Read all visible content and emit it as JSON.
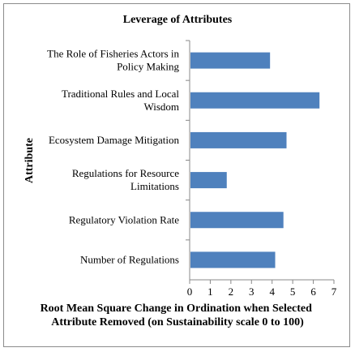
{
  "chart_data": {
    "type": "bar",
    "orientation": "horizontal",
    "title": "Leverage of Attributes",
    "ylabel": "Attribute",
    "xlabel_lines": [
      "Root Mean Square Change in Ordination when Selected",
      "Attribute Removed (on Sustainability scale 0 to 100)"
    ],
    "categories": [
      [
        "The Role of Fisheries Actors in",
        "Policy Making"
      ],
      [
        "Traditional Rules and Local",
        "Wisdom"
      ],
      [
        "Ecosystem Damage Mitigation"
      ],
      [
        "Regulations for Resource",
        "Limitations"
      ],
      [
        "Regulatory Violation Rate"
      ],
      [
        "Number of Regulations"
      ]
    ],
    "values": [
      3.9,
      6.3,
      4.7,
      1.8,
      4.55,
      4.15
    ],
    "xlim": [
      0,
      7
    ],
    "xticks": [
      "0",
      "1",
      "2",
      "3",
      "4",
      "5",
      "6",
      "7"
    ],
    "bar_color": "#4f81bd",
    "grid": false,
    "legend": "none"
  }
}
